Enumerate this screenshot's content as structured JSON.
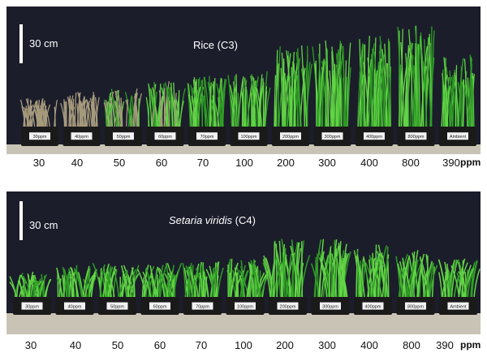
{
  "colors": {
    "background": "#1b1d2b",
    "bench": "#c9c3b5",
    "tray": "#1a1a1a",
    "plant_light": "#63d446",
    "plant_dark": "#2f9c26",
    "dried": "#a69a7c"
  },
  "top_panel": {
    "scale_label": "30 cm",
    "title": "Rice (C3)",
    "tray_labels": [
      "30ppm",
      "40ppm",
      "50ppm",
      "60ppm",
      "70ppm",
      "100ppm",
      "200ppm",
      "300ppm",
      "400ppm",
      "800ppm",
      "Ambient"
    ],
    "growth": [
      0.28,
      0.35,
      0.38,
      0.45,
      0.5,
      0.55,
      0.82,
      0.85,
      0.9,
      1.0,
      0.72
    ],
    "dried": [
      1,
      1,
      0.6,
      0.2,
      0,
      0,
      0,
      0,
      0,
      0,
      0
    ],
    "ticks": [
      "30",
      "40",
      "50",
      "60",
      "70",
      "100",
      "200",
      "300",
      "400",
      "800",
      "390"
    ],
    "unit": "ppm"
  },
  "bottom_panel": {
    "scale_label": "30 cm",
    "title_italic": "Setaria viridis",
    "title_suffix": "(C4)",
    "tray_labels": [
      "30ppm",
      "40ppm",
      "50ppm",
      "60ppm",
      "70ppm",
      "100ppm",
      "200ppm",
      "300ppm",
      "400ppm",
      "800ppm",
      "Ambient"
    ],
    "growth": [
      0.3,
      0.38,
      0.4,
      0.4,
      0.42,
      0.45,
      0.7,
      0.68,
      0.62,
      0.55,
      0.45
    ],
    "dried": [
      0,
      0,
      0,
      0,
      0,
      0,
      0,
      0,
      0,
      0,
      0
    ],
    "ticks": [
      "30",
      "40",
      "50",
      "60",
      "70",
      "100",
      "200",
      "300",
      "400",
      "800",
      "390"
    ],
    "unit": "ppm"
  }
}
